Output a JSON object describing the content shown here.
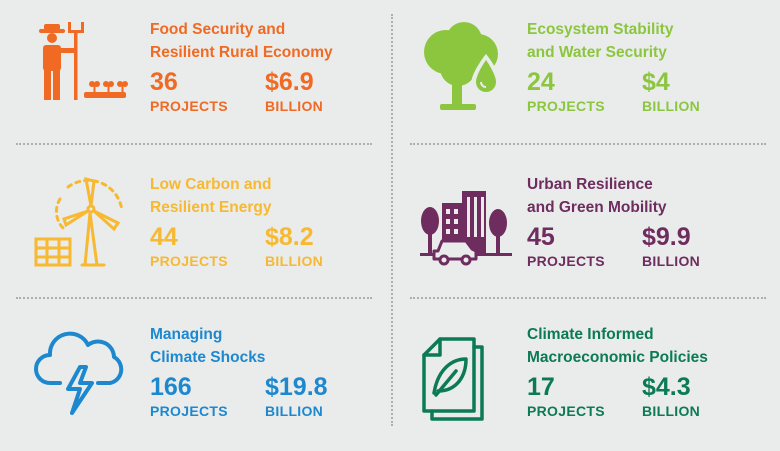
{
  "colors": {
    "orange": "#f06a23",
    "lime": "#8cc63f",
    "yellow": "#f7b832",
    "purple": "#6f2c5e",
    "blue": "#1e88cf",
    "green": "#0b7a55",
    "divider": "#a9b0ad",
    "background": "#e9eceb"
  },
  "cards": [
    {
      "icon": "farmer-icon",
      "title_line1": "Food Security and",
      "title_line2": "Resilient Rural Economy",
      "projects": "36",
      "projects_label": "PROJECTS",
      "amount": "$6.9",
      "amount_label": "BILLION"
    },
    {
      "icon": "tree-water-drop-icon",
      "title_line1": "Ecosystem Stability",
      "title_line2": "and Water Security",
      "projects": "24",
      "projects_label": "PROJECTS",
      "amount": "$4",
      "amount_label": "BILLION"
    },
    {
      "icon": "wind-turbine-solar-icon",
      "title_line1": "Low Carbon and",
      "title_line2": "Resilient Energy",
      "projects": "44",
      "projects_label": "PROJECTS",
      "amount": "$8.2",
      "amount_label": "BILLION"
    },
    {
      "icon": "city-car-icon",
      "title_line1": "Urban Resilience",
      "title_line2": "and Green Mobility",
      "projects": "45",
      "projects_label": "PROJECTS",
      "amount": "$9.9",
      "amount_label": "BILLION"
    },
    {
      "icon": "storm-cloud-icon",
      "title_line1": "Managing",
      "title_line2": "Climate Shocks",
      "projects": "166",
      "projects_label": "PROJECTS",
      "amount": "$19.8",
      "amount_label": "BILLION"
    },
    {
      "icon": "leaf-document-icon",
      "title_line1": "Climate Informed",
      "title_line2": "Macroeconomic Policies",
      "projects": "17",
      "projects_label": "PROJECTS",
      "amount": "$4.3",
      "amount_label": "BILLION"
    }
  ]
}
